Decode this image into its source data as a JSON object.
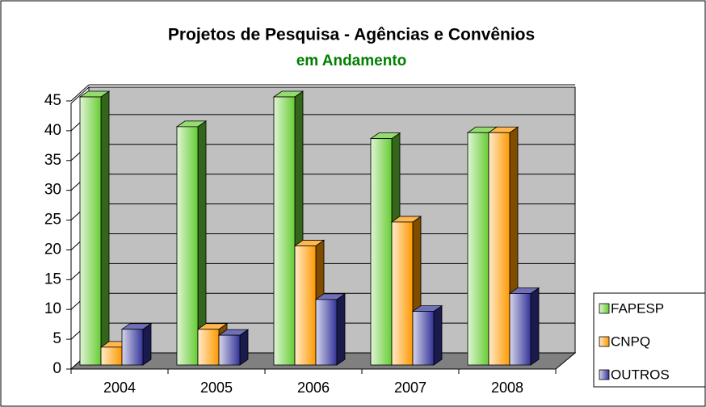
{
  "chart_data": {
    "type": "bar3d",
    "title": "Projetos de Pesquisa - Agências e Convênios",
    "subtitle": "em Andamento",
    "categories": [
      "2004",
      "2005",
      "2006",
      "2007",
      "2008"
    ],
    "series": [
      {
        "name": "FAPESP",
        "color": "#66cc33",
        "values": [
          45,
          40,
          45,
          38,
          39
        ]
      },
      {
        "name": "CNPQ",
        "color": "#ff9900",
        "values": [
          3,
          6,
          20,
          24,
          39
        ]
      },
      {
        "name": "OUTROS",
        "color": "#333399",
        "values": [
          6,
          5,
          11,
          9,
          12
        ]
      }
    ],
    "ylim": [
      0,
      45
    ],
    "yticks": [
      0,
      5,
      10,
      15,
      20,
      25,
      30,
      35,
      40,
      45
    ],
    "grid": true,
    "legend": "right"
  }
}
